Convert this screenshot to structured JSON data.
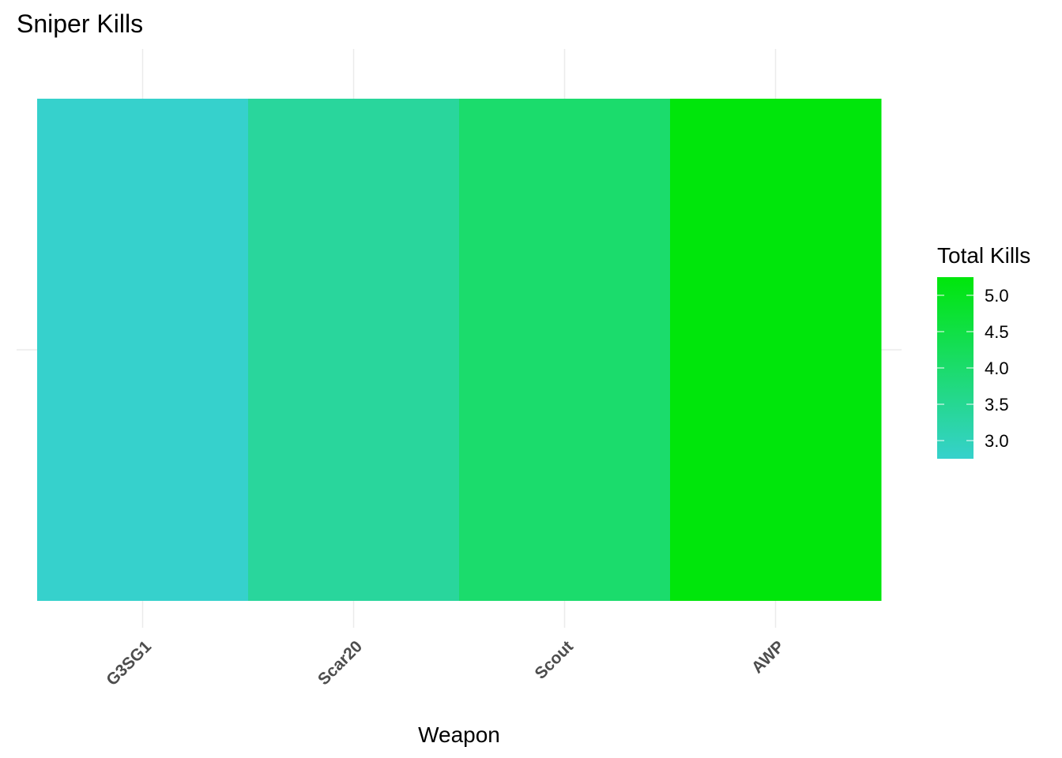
{
  "chart_data": {
    "type": "heatmap",
    "title": "Sniper Kills",
    "xlabel": "Weapon",
    "ylabel": "",
    "categories": [
      "G3SG1",
      "Scar20",
      "Scout",
      "AWP"
    ],
    "values": [
      3,
      3.5,
      4,
      5
    ],
    "legend": {
      "title": "Total Kills",
      "position": "right",
      "range": [
        2.75,
        5.25
      ],
      "ticks": [
        "3.0",
        "3.5",
        "4.0",
        "4.5",
        "5.0"
      ],
      "tick_values": [
        3.0,
        3.5,
        4.0,
        4.5,
        5.0
      ]
    },
    "colors": {
      "low": "#36d1cc",
      "high": "#00e60b"
    },
    "grid": true
  }
}
